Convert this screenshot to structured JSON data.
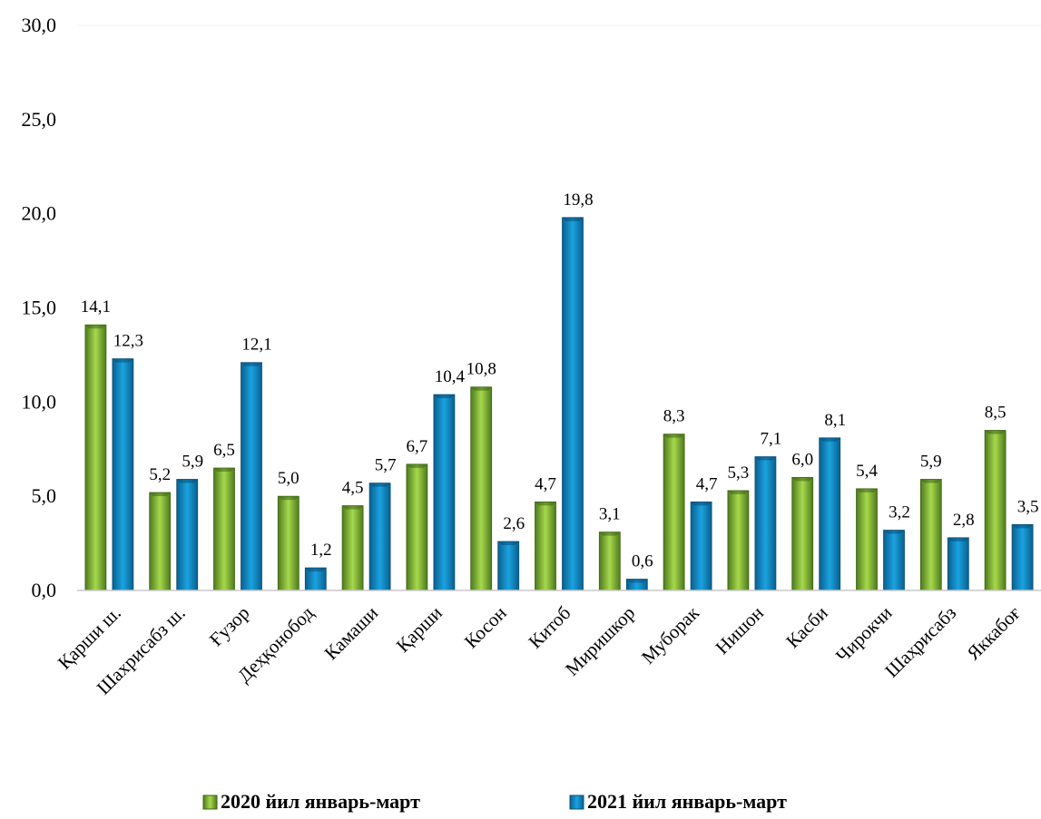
{
  "chart_data": {
    "type": "bar",
    "categories": [
      "Қарши ш.",
      "Шахрисабз ш.",
      "Ғузор",
      "Деҳқонобод",
      "Камаши",
      "Қарши",
      "Косон",
      "Китоб",
      "Миришкор",
      "Муборак",
      "Нишон",
      "Касби",
      "Чирокчи",
      "Шаҳрисабз",
      "Яккабоғ"
    ],
    "series": [
      {
        "name": "2020 йил январь-март",
        "values": [
          14.1,
          5.2,
          6.5,
          5.0,
          4.5,
          6.7,
          10.8,
          4.7,
          3.1,
          8.3,
          5.3,
          6.0,
          5.4,
          5.9,
          8.5
        ],
        "labels": [
          "14,1",
          "5,2",
          "6,5",
          "5,0",
          "4,5",
          "6,7",
          "10,8",
          "4,7",
          "3,1",
          "8,3",
          "5,3",
          "6,0",
          "5,4",
          "5,9",
          "8,5"
        ],
        "color": "#8cc63f"
      },
      {
        "name": "2021 йил январь-март",
        "values": [
          12.3,
          5.9,
          12.1,
          1.2,
          5.7,
          10.4,
          2.6,
          19.8,
          0.6,
          4.7,
          7.1,
          8.1,
          3.2,
          2.8,
          3.5
        ],
        "labels": [
          "12,3",
          "5,9",
          "12,1",
          "1,2",
          "5,7",
          "10,4",
          "2,6",
          "19,8",
          "0,6",
          "4,7",
          "7,1",
          "8,1",
          "3,2",
          "2,8",
          "3,5"
        ],
        "color": "#1a9ad6"
      }
    ],
    "ylim": [
      0,
      30
    ],
    "yticks": [
      0,
      5,
      10,
      15,
      20,
      25,
      30
    ],
    "ytick_labels": [
      "0,0",
      "5,0",
      "10,0",
      "15,0",
      "20,0",
      "25,0",
      "30,0"
    ],
    "title": "",
    "xlabel": "",
    "ylabel": "",
    "legend_position": "bottom",
    "grid": false
  }
}
